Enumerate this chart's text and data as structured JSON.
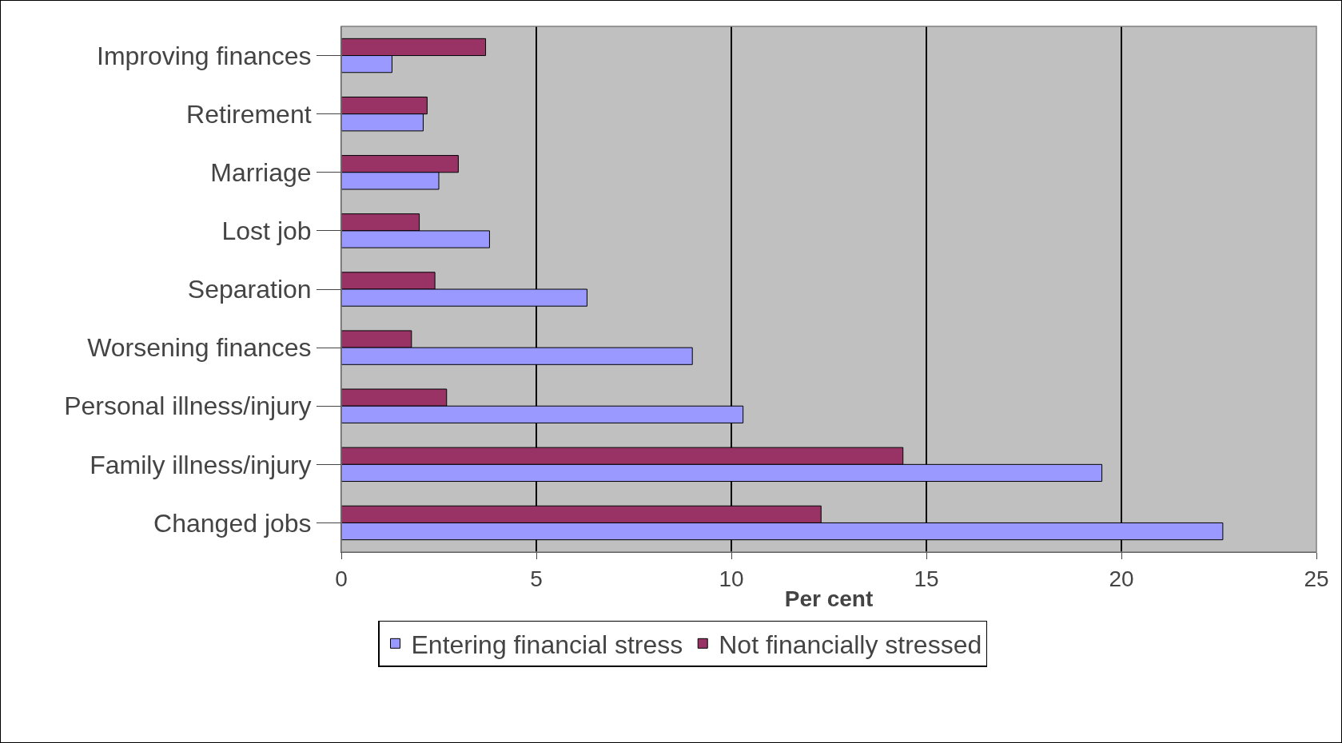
{
  "chart_data": {
    "type": "bar",
    "orientation": "horizontal",
    "xlabel": "Per cent",
    "categories": [
      "Improving finances",
      "Retirement",
      "Marriage",
      "Lost job",
      "Separation",
      "Worsening finances",
      "Personal illness/injury",
      "Family illness/injury",
      "Changed jobs"
    ],
    "series": [
      {
        "name": "Entering financial stress",
        "color": "#9999ff",
        "values": [
          1.3,
          2.1,
          2.5,
          3.8,
          6.3,
          9.0,
          10.3,
          19.5,
          22.6
        ]
      },
      {
        "name": "Not financially stressed",
        "color": "#993366",
        "values": [
          3.7,
          2.2,
          3.0,
          2.0,
          2.4,
          1.8,
          2.7,
          14.4,
          12.3
        ]
      }
    ],
    "xlim": [
      0,
      25
    ],
    "xticks": [
      0,
      5,
      10,
      15,
      20,
      25
    ],
    "grid": "x",
    "legend": "bottom"
  }
}
